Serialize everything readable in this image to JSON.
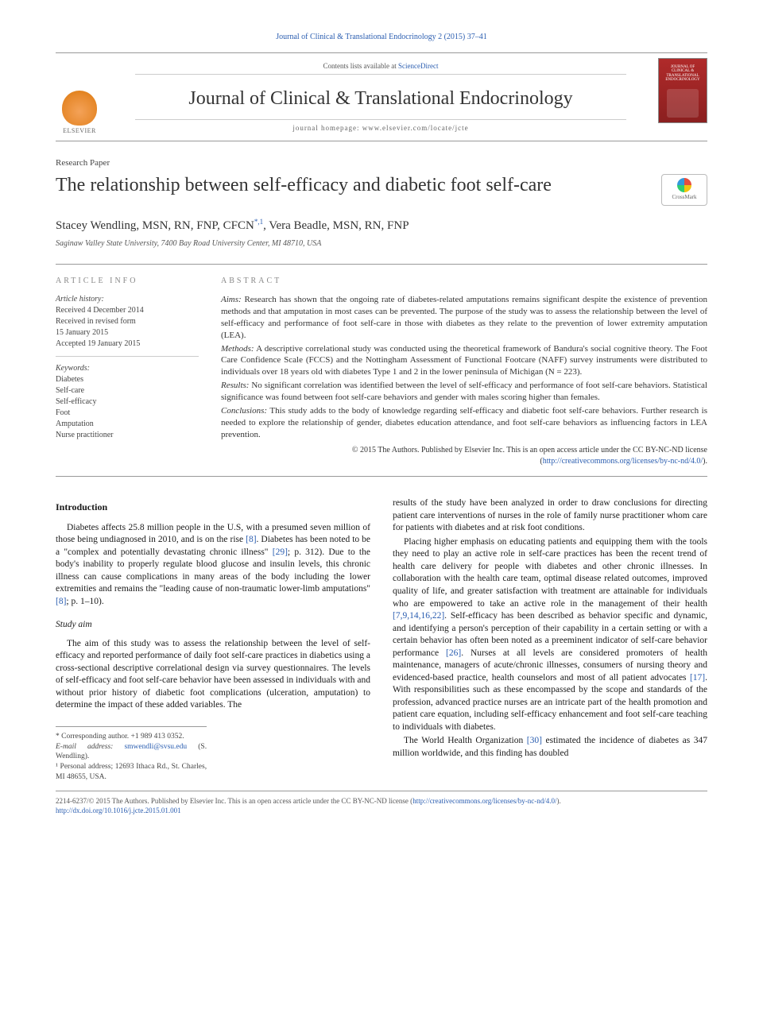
{
  "citation_header": "Journal of Clinical & Translational Endocrinology 2 (2015) 37–41",
  "masthead": {
    "contents_prefix": "Contents lists available at ",
    "contents_link": "ScienceDirect",
    "journal_name": "Journal of Clinical & Translational Endocrinology",
    "homepage_label": "journal homepage: ",
    "homepage_url": "www.elsevier.com/locate/jcte",
    "publisher": "ELSEVIER"
  },
  "article_type": "Research Paper",
  "title": "The relationship between self-efficacy and diabetic foot self-care",
  "crossmark_label": "CrossMark",
  "authors_html": "Stacey Wendling, MSN, RN, FNP, CFCN",
  "author_sup1": "*,1",
  "authors_html2": ", Vera Beadle, MSN, RN, FNP",
  "affiliation": "Saginaw Valley State University, 7400 Bay Road University Center, MI 48710, USA",
  "article_info": {
    "heading": "ARTICLE INFO",
    "history_label": "Article history:",
    "received": "Received 4 December 2014",
    "revised1": "Received in revised form",
    "revised2": "15 January 2015",
    "accepted": "Accepted 19 January 2015",
    "keywords_label": "Keywords:",
    "keywords": [
      "Diabetes",
      "Self-care",
      "Self-efficacy",
      "Foot",
      "Amputation",
      "Nurse practitioner"
    ]
  },
  "abstract": {
    "heading": "ABSTRACT",
    "aims_label": "Aims:",
    "aims": " Research has shown that the ongoing rate of diabetes-related amputations remains significant despite the existence of prevention methods and that amputation in most cases can be prevented. The purpose of the study was to assess the relationship between the level of self-efficacy and performance of foot self-care in those with diabetes as they relate to the prevention of lower extremity amputation (LEA).",
    "methods_label": "Methods:",
    "methods": " A descriptive correlational study was conducted using the theoretical framework of Bandura's social cognitive theory. The Foot Care Confidence Scale (FCCS) and the Nottingham Assessment of Functional Footcare (NAFF) survey instruments were distributed to individuals over 18 years old with diabetes Type 1 and 2 in the lower peninsula of Michigan (N = 223).",
    "results_label": "Results:",
    "results": " No significant correlation was identified between the level of self-efficacy and performance of foot self-care behaviors. Statistical significance was found between foot self-care behaviors and gender with males scoring higher than females.",
    "conclusions_label": "Conclusions:",
    "conclusions": " This study adds to the body of knowledge regarding self-efficacy and diabetic foot self-care behaviors. Further research is needed to explore the relationship of gender, diabetes education attendance, and foot self-care behaviors as influencing factors in LEA prevention.",
    "copyright": "© 2015 The Authors. Published by Elsevier Inc. This is an open access article under the CC BY-NC-ND license (",
    "cc_link": "http://creativecommons.org/licenses/by-nc-nd/4.0/",
    "copyright_close": ")."
  },
  "body": {
    "intro_h": "Introduction",
    "intro_p1a": "Diabetes affects 25.8 million people in the U.S, with a presumed seven million of those being undiagnosed in 2010, and is on the rise ",
    "intro_r1": "[8]",
    "intro_p1b": ". Diabetes has been noted to be a \"complex and potentially devastating chronic illness\" ",
    "intro_r2": "[29]",
    "intro_p1c": "; p. 312). Due to the body's inability to properly regulate blood glucose and insulin levels, this chronic illness can cause complications in many areas of the body including the lower extremities and remains the \"leading cause of non-traumatic lower-limb amputations\" ",
    "intro_r3": "[8]",
    "intro_p1d": "; p. 1–10).",
    "aim_h": "Study aim",
    "aim_p": "The aim of this study was to assess the relationship between the level of self-efficacy and reported performance of daily foot self-care practices in diabetics using a cross-sectional descriptive correlational design via survey questionnaires. The levels of self-efficacy and foot self-care behavior have been assessed in individuals with and without prior history of diabetic foot complications (ulceration, amputation) to determine the impact of these added variables. The",
    "col2_p1": "results of the study have been analyzed in order to draw conclusions for directing patient care interventions of nurses in the role of family nurse practitioner whom care for patients with diabetes and at risk foot conditions.",
    "col2_p2a": "Placing higher emphasis on educating patients and equipping them with the tools they need to play an active role in self-care practices has been the recent trend of health care delivery for people with diabetes and other chronic illnesses. In collaboration with the health care team, optimal disease related outcomes, improved quality of life, and greater satisfaction with treatment are attainable for individuals who are empowered to take an active role in the management of their health ",
    "col2_r1": "[7,9,14,16,22]",
    "col2_p2b": ". Self-efficacy has been described as behavior specific and dynamic, and identifying a person's perception of their capability in a certain setting or with a certain behavior has often been noted as a preeminent indicator of self-care behavior performance ",
    "col2_r2": "[26]",
    "col2_p2c": ". Nurses at all levels are considered promoters of health maintenance, managers of acute/chronic illnesses, consumers of nursing theory and evidenced-based practice, health counselors and most of all patient advocates ",
    "col2_r3": "[17]",
    "col2_p2d": ". With responsibilities such as these encompassed by the scope and standards of the profession, advanced practice nurses are an intricate part of the health promotion and patient care equation, including self-efficacy enhancement and foot self-care teaching to individuals with diabetes.",
    "col2_p3a": "The World Health Organization ",
    "col2_r4": "[30]",
    "col2_p3b": " estimated the incidence of diabetes as 347 million worldwide, and this finding has doubled"
  },
  "footnotes": {
    "corr": "* Corresponding author. +1 989 413 0352.",
    "email_label": "E-mail address: ",
    "email": "smwendli@svsu.edu",
    "email_who": " (S. Wendling).",
    "personal": "¹ Personal address; 12693 Ithaca Rd., St. Charles, MI 48655, USA."
  },
  "footer": {
    "line1a": "2214-6237/© 2015 The Authors. Published by Elsevier Inc. This is an open access article under the CC BY-NC-ND license (",
    "cc_link": "http://creativecommons.org/licenses/by-nc-nd/4.0/",
    "line1b": ").",
    "doi": "http://dx.doi.org/10.1016/j.jcte.2015.01.001"
  },
  "colors": {
    "link": "#2a5db0",
    "rule": "#999999",
    "text": "#1a1a1a",
    "muted": "#666666",
    "cover_red": "#8b1f1f"
  }
}
